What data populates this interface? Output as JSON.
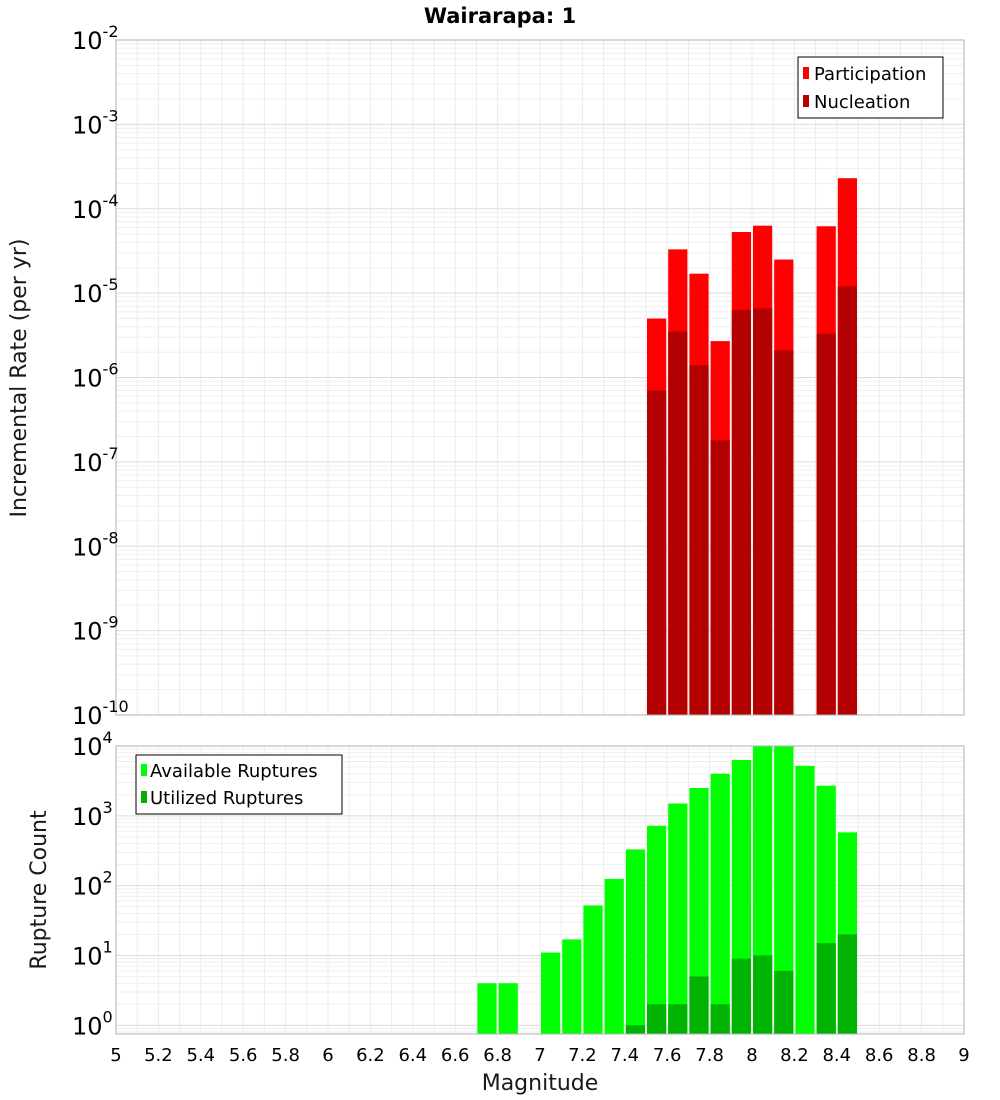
{
  "chart_data": [
    {
      "type": "bar",
      "title": "Wairarapa: 1",
      "xlabel": "",
      "ylabel": "Incremental Rate (per yr)",
      "yscale": "log",
      "xlim": [
        5,
        9
      ],
      "ylim": [
        1e-10,
        0.01
      ],
      "y_ticks": [
        {
          "base": "10",
          "exp": "-2"
        },
        {
          "base": "10",
          "exp": "-3"
        },
        {
          "base": "10",
          "exp": "-4"
        },
        {
          "base": "10",
          "exp": "-5"
        },
        {
          "base": "10",
          "exp": "-6"
        },
        {
          "base": "10",
          "exp": "-7"
        },
        {
          "base": "10",
          "exp": "-8"
        },
        {
          "base": "10",
          "exp": "-9"
        },
        {
          "base": "10",
          "exp": "-10"
        }
      ],
      "grid": true,
      "legend_position": "top-right",
      "bin_width": 0.1,
      "series": [
        {
          "name": "Participation",
          "color": "#ff0000",
          "points": [
            {
              "x": 7.55,
              "y": 5e-06
            },
            {
              "x": 7.65,
              "y": 3.3e-05
            },
            {
              "x": 7.75,
              "y": 1.7e-05
            },
            {
              "x": 7.85,
              "y": 2.7e-06
            },
            {
              "x": 7.95,
              "y": 5.3e-05
            },
            {
              "x": 8.05,
              "y": 6.3e-05
            },
            {
              "x": 8.15,
              "y": 2.5e-05
            },
            {
              "x": 8.35,
              "y": 6.2e-05
            },
            {
              "x": 8.45,
              "y": 0.00023
            }
          ]
        },
        {
          "name": "Nucleation",
          "color": "#b30000",
          "points": [
            {
              "x": 7.55,
              "y": 7e-07
            },
            {
              "x": 7.65,
              "y": 3.5e-06
            },
            {
              "x": 7.75,
              "y": 1.4e-06
            },
            {
              "x": 7.85,
              "y": 1.8e-07
            },
            {
              "x": 7.95,
              "y": 6.3e-06
            },
            {
              "x": 8.05,
              "y": 6.6e-06
            },
            {
              "x": 8.15,
              "y": 2.1e-06
            },
            {
              "x": 8.35,
              "y": 3.3e-06
            },
            {
              "x": 8.45,
              "y": 1.2e-05
            }
          ]
        }
      ]
    },
    {
      "type": "bar",
      "title": "",
      "xlabel": "Magnitude",
      "ylabel": "Rupture Count",
      "yscale": "log",
      "xlim": [
        5,
        9
      ],
      "ylim": [
        0.75,
        10000
      ],
      "y_ticks": [
        {
          "base": "10",
          "exp": "4"
        },
        {
          "base": "10",
          "exp": "3"
        },
        {
          "base": "10",
          "exp": "2"
        },
        {
          "base": "10",
          "exp": "1"
        },
        {
          "base": "10",
          "exp": "0"
        }
      ],
      "x_ticks": [
        "5",
        "5.2",
        "5.4",
        "5.6",
        "5.8",
        "6",
        "6.2",
        "6.4",
        "6.6",
        "6.8",
        "7",
        "7.2",
        "7.4",
        "7.6",
        "7.8",
        "8",
        "8.2",
        "8.4",
        "8.6",
        "8.8",
        "9"
      ],
      "grid": true,
      "legend_position": "top-left",
      "bin_width": 0.1,
      "series": [
        {
          "name": "Available Ruptures",
          "color": "#00ff00",
          "points": [
            {
              "x": 6.75,
              "y": 4
            },
            {
              "x": 6.85,
              "y": 4
            },
            {
              "x": 7.05,
              "y": 11
            },
            {
              "x": 7.15,
              "y": 17
            },
            {
              "x": 7.25,
              "y": 52
            },
            {
              "x": 7.35,
              "y": 125
            },
            {
              "x": 7.45,
              "y": 330
            },
            {
              "x": 7.55,
              "y": 720
            },
            {
              "x": 7.65,
              "y": 1500
            },
            {
              "x": 7.75,
              "y": 2500
            },
            {
              "x": 7.85,
              "y": 4000
            },
            {
              "x": 7.95,
              "y": 6300
            },
            {
              "x": 8.05,
              "y": 10000
            },
            {
              "x": 8.15,
              "y": 10000
            },
            {
              "x": 8.25,
              "y": 5200
            },
            {
              "x": 8.35,
              "y": 2700
            },
            {
              "x": 8.45,
              "y": 580
            }
          ]
        },
        {
          "name": "Utilized Ruptures",
          "color": "#00b300",
          "points": [
            {
              "x": 7.45,
              "y": 1
            },
            {
              "x": 7.55,
              "y": 2
            },
            {
              "x": 7.65,
              "y": 2
            },
            {
              "x": 7.75,
              "y": 5
            },
            {
              "x": 7.85,
              "y": 2
            },
            {
              "x": 7.95,
              "y": 9
            },
            {
              "x": 8.05,
              "y": 10
            },
            {
              "x": 8.15,
              "y": 6
            },
            {
              "x": 8.35,
              "y": 15
            },
            {
              "x": 8.45,
              "y": 20
            }
          ]
        }
      ]
    }
  ]
}
